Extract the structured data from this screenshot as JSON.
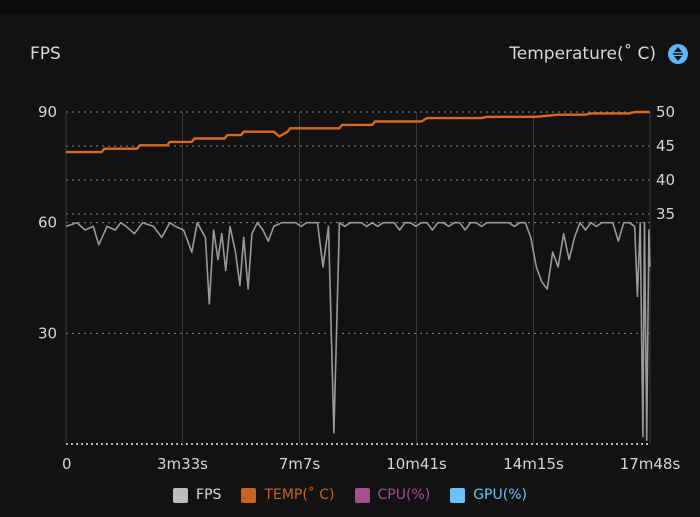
{
  "header": {
    "left_title": "FPS",
    "right_title": "Temperature(˚ C)",
    "toggle_icon": "swap-vertical-icon"
  },
  "colors": {
    "fps": "#9a9a9a",
    "temp": "#d9691d",
    "cpu": "#a64e8e",
    "gpu": "#69c3f5",
    "grid": "#8a8a8a",
    "text": "#d6d6d6",
    "toggle": "#5fb6f5"
  },
  "legend": [
    {
      "label": "FPS",
      "color": "#bdbdbd"
    },
    {
      "label": "TEMP(˚ C)",
      "color": "#c9621c"
    },
    {
      "label": "CPU(%)",
      "color": "#a64e8e"
    },
    {
      "label": "GPU(%)",
      "color": "#69c3f5"
    }
  ],
  "chart_data": {
    "type": "line",
    "x_unit": "seconds",
    "x_ticks": [
      {
        "value": 0,
        "label": "0"
      },
      {
        "value": 213,
        "label": "3m33s"
      },
      {
        "value": 427,
        "label": "7m7s"
      },
      {
        "value": 641,
        "label": "10m41s"
      },
      {
        "value": 855,
        "label": "14m15s"
      },
      {
        "value": 1068,
        "label": "17m48s"
      }
    ],
    "xlim": [
      0,
      1068
    ],
    "y_left": {
      "label": "FPS",
      "ticks": [
        30,
        60,
        90
      ],
      "lim": [
        0,
        90
      ]
    },
    "y_right": {
      "label": "Temperature(˚ C)",
      "ticks": [
        35,
        40,
        45,
        50
      ],
      "lim": [
        35,
        50
      ]
    },
    "grid": true,
    "legend_position": "bottom",
    "series": [
      {
        "name": "FPS",
        "axis": "left",
        "x": [
          0,
          20,
          35,
          50,
          60,
          75,
          90,
          100,
          110,
          125,
          140,
          160,
          175,
          190,
          200,
          215,
          230,
          240,
          255,
          262,
          270,
          278,
          285,
          292,
          300,
          310,
          318,
          325,
          333,
          340,
          350,
          360,
          370,
          380,
          395,
          410,
          420,
          430,
          440,
          450,
          460,
          470,
          480,
          490,
          500,
          510,
          520,
          530,
          540,
          550,
          560,
          570,
          580,
          590,
          600,
          610,
          620,
          630,
          640,
          650,
          660,
          670,
          680,
          690,
          700,
          710,
          720,
          730,
          740,
          750,
          760,
          770,
          780,
          790,
          800,
          810,
          820,
          830,
          840,
          850,
          860,
          870,
          880,
          890,
          900,
          910,
          920,
          930,
          940,
          950,
          960,
          970,
          980,
          990,
          1000,
          1010,
          1020,
          1030,
          1040,
          1045,
          1050,
          1055,
          1058,
          1062,
          1066,
          1068
        ],
        "y": [
          59,
          60,
          58,
          59,
          54,
          59,
          58,
          60,
          59,
          57,
          60,
          59,
          56,
          60,
          59,
          58,
          52,
          60,
          56,
          38,
          58,
          50,
          57,
          47,
          59,
          52,
          43,
          56,
          42,
          57,
          60,
          58,
          55,
          59,
          60,
          60,
          60,
          59,
          60,
          60,
          60,
          48,
          59,
          3,
          60,
          59,
          60,
          60,
          60,
          59,
          60,
          59,
          60,
          60,
          60,
          58,
          60,
          60,
          59,
          60,
          60,
          58,
          60,
          60,
          59,
          60,
          60,
          58,
          60,
          60,
          59,
          60,
          60,
          60,
          60,
          60,
          59,
          60,
          60,
          56,
          48,
          44,
          42,
          52,
          48,
          57,
          50,
          56,
          60,
          58,
          60,
          59,
          60,
          60,
          60,
          55,
          60,
          60,
          59,
          40,
          60,
          2,
          60,
          1,
          58,
          48
        ]
      },
      {
        "name": "TEMP(˚ C)",
        "axis": "right",
        "x": [
          0,
          65,
          70,
          130,
          135,
          185,
          190,
          230,
          235,
          290,
          295,
          320,
          325,
          380,
          390,
          405,
          410,
          460,
          500,
          505,
          560,
          565,
          650,
          660,
          760,
          770,
          860,
          900,
          950,
          960,
          1030,
          1040,
          1068
        ],
        "y": [
          44.1,
          44.1,
          44.6,
          44.6,
          45.1,
          45.1,
          45.6,
          45.6,
          46.1,
          46.1,
          46.6,
          46.6,
          47.1,
          47.1,
          46.4,
          47.1,
          47.6,
          47.6,
          47.6,
          48.1,
          48.1,
          48.6,
          48.6,
          49.1,
          49.1,
          49.3,
          49.3,
          49.6,
          49.6,
          49.8,
          49.8,
          50.0,
          50.0
        ]
      }
    ]
  }
}
